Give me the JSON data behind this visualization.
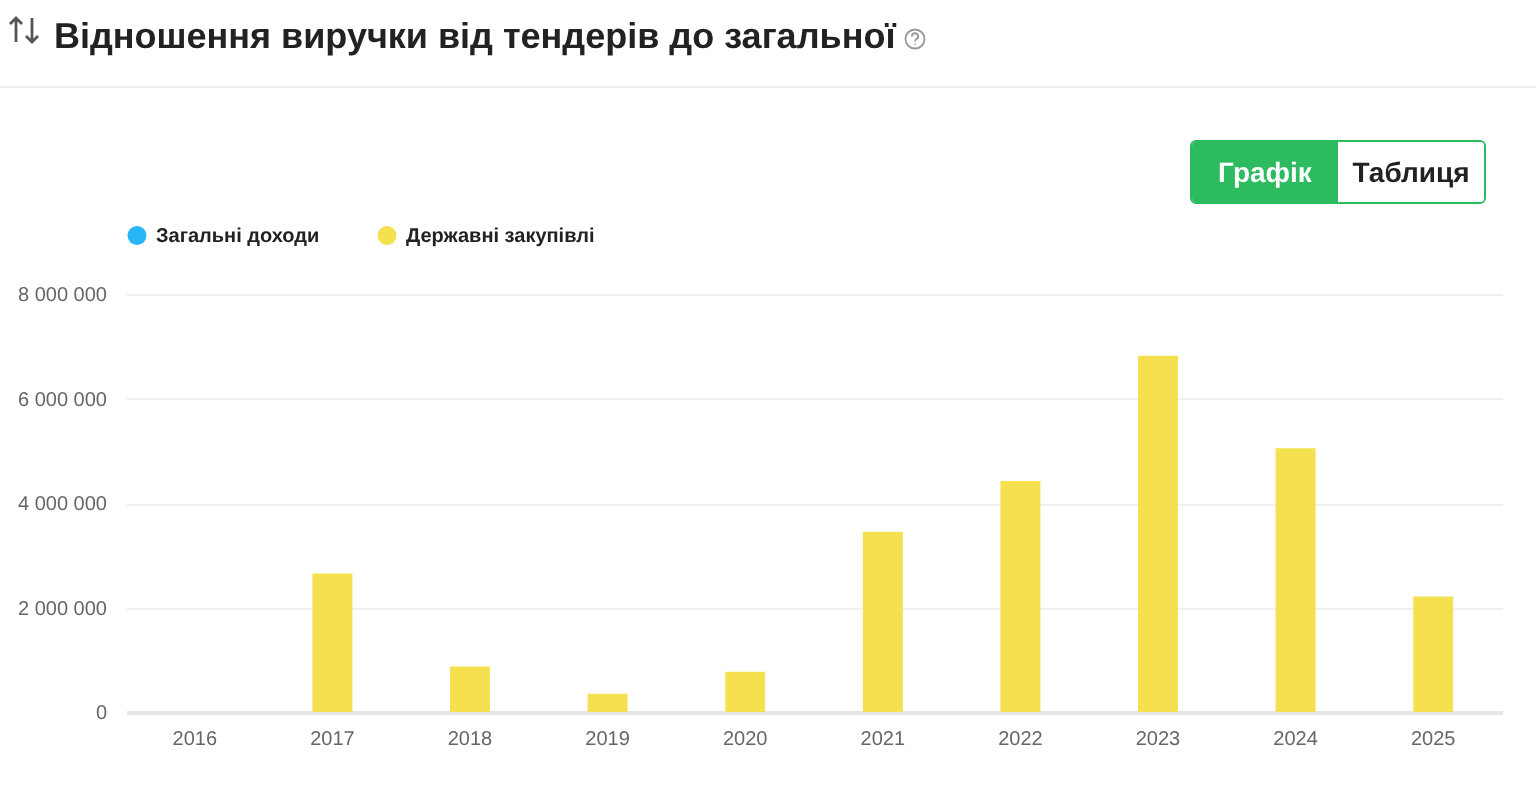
{
  "chart_data": {
    "type": "bar",
    "title": "Відношення виручки від тендерів до загальної",
    "annotations": [
      "Графік",
      "Таблиця"
    ],
    "categories": [
      "2016",
      "2017",
      "2018",
      "2019",
      "2020",
      "2021",
      "2022",
      "2023",
      "2024",
      "2025"
    ],
    "series": [
      {
        "name": "Загальні доходи",
        "color": "#29b6f6",
        "values": [
          null,
          null,
          null,
          null,
          null,
          null,
          null,
          null,
          null,
          null
        ]
      },
      {
        "name": "Державні закупівлі",
        "color": "#f5e050",
        "values": [
          null,
          2650000,
          870000,
          350000,
          770000,
          3450000,
          4420000,
          6820000,
          5050000,
          2210000
        ]
      }
    ],
    "ylim": [
      0,
      8000000
    ],
    "yticks": [
      {
        "value": 0,
        "label": "0"
      },
      {
        "value": 2000000,
        "label": "2 000 000"
      },
      {
        "value": 4000000,
        "label": "4 000 000"
      },
      {
        "value": 6000000,
        "label": "6 000 000"
      },
      {
        "value": 8000000,
        "label": "8 000 000"
      }
    ],
    "grid": "y",
    "legend": "top left"
  }
}
